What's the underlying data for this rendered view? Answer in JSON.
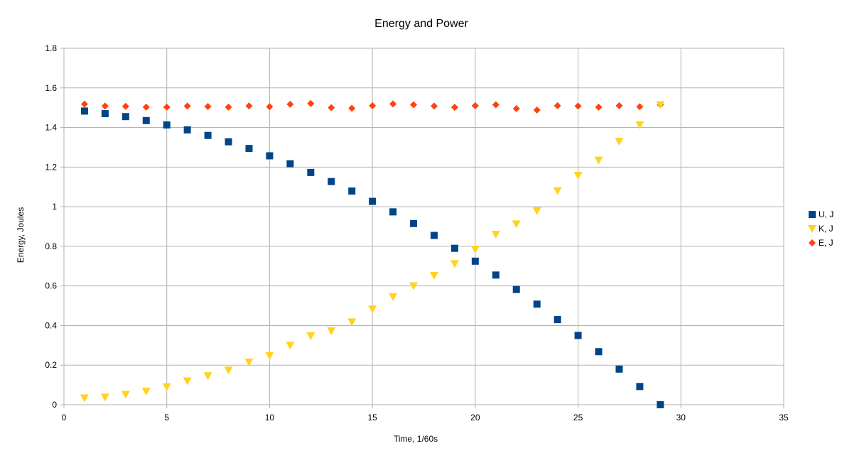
{
  "chart_data": {
    "type": "scatter",
    "title": "Energy and Power",
    "xlabel": "Time, 1/60s",
    "ylabel": "Energy, Joules",
    "xlim": [
      0,
      35
    ],
    "ylim": [
      0,
      1.8
    ],
    "x_ticks": [
      "0",
      "5",
      "10",
      "15",
      "20",
      "25",
      "30",
      "35"
    ],
    "y_ticks": [
      "0",
      "0.2",
      "0.4",
      "0.6",
      "0.8",
      "1",
      "1.2",
      "1.4",
      "1.6",
      "1.8"
    ],
    "grid": true,
    "legend_position": "right",
    "x": [
      1,
      2,
      3,
      4,
      5,
      6,
      7,
      8,
      9,
      10,
      11,
      12,
      13,
      14,
      15,
      16,
      17,
      18,
      19,
      20,
      21,
      22,
      23,
      24,
      25,
      26,
      27,
      28,
      29
    ],
    "series": [
      {
        "name": "U, J",
        "marker": "square",
        "color": "#004586",
        "values": [
          1.483,
          1.47,
          1.455,
          1.435,
          1.413,
          1.388,
          1.36,
          1.328,
          1.294,
          1.257,
          1.217,
          1.173,
          1.127,
          1.079,
          1.027,
          0.974,
          0.915,
          0.855,
          0.79,
          0.725,
          0.655,
          0.582,
          0.508,
          0.43,
          0.35,
          0.268,
          0.18,
          0.092,
          0.0
        ]
      },
      {
        "name": "K, J",
        "marker": "triangle-down",
        "color": "#ffd320",
        "values": [
          0.034,
          0.038,
          0.052,
          0.068,
          0.09,
          0.12,
          0.146,
          0.175,
          0.215,
          0.248,
          0.3,
          0.348,
          0.373,
          0.418,
          0.483,
          0.545,
          0.6,
          0.653,
          0.712,
          0.785,
          0.86,
          0.913,
          0.98,
          1.08,
          1.158,
          1.235,
          1.33,
          1.413,
          1.515
        ]
      },
      {
        "name": "E, J",
        "marker": "diamond",
        "color": "#ff420e",
        "values": [
          1.518,
          1.508,
          1.507,
          1.503,
          1.503,
          1.508,
          1.506,
          1.503,
          1.509,
          1.505,
          1.517,
          1.521,
          1.5,
          1.497,
          1.51,
          1.519,
          1.515,
          1.508,
          1.502,
          1.51,
          1.515,
          1.495,
          1.488,
          1.51,
          1.508,
          1.503,
          1.51,
          1.505,
          1.515
        ]
      }
    ]
  }
}
